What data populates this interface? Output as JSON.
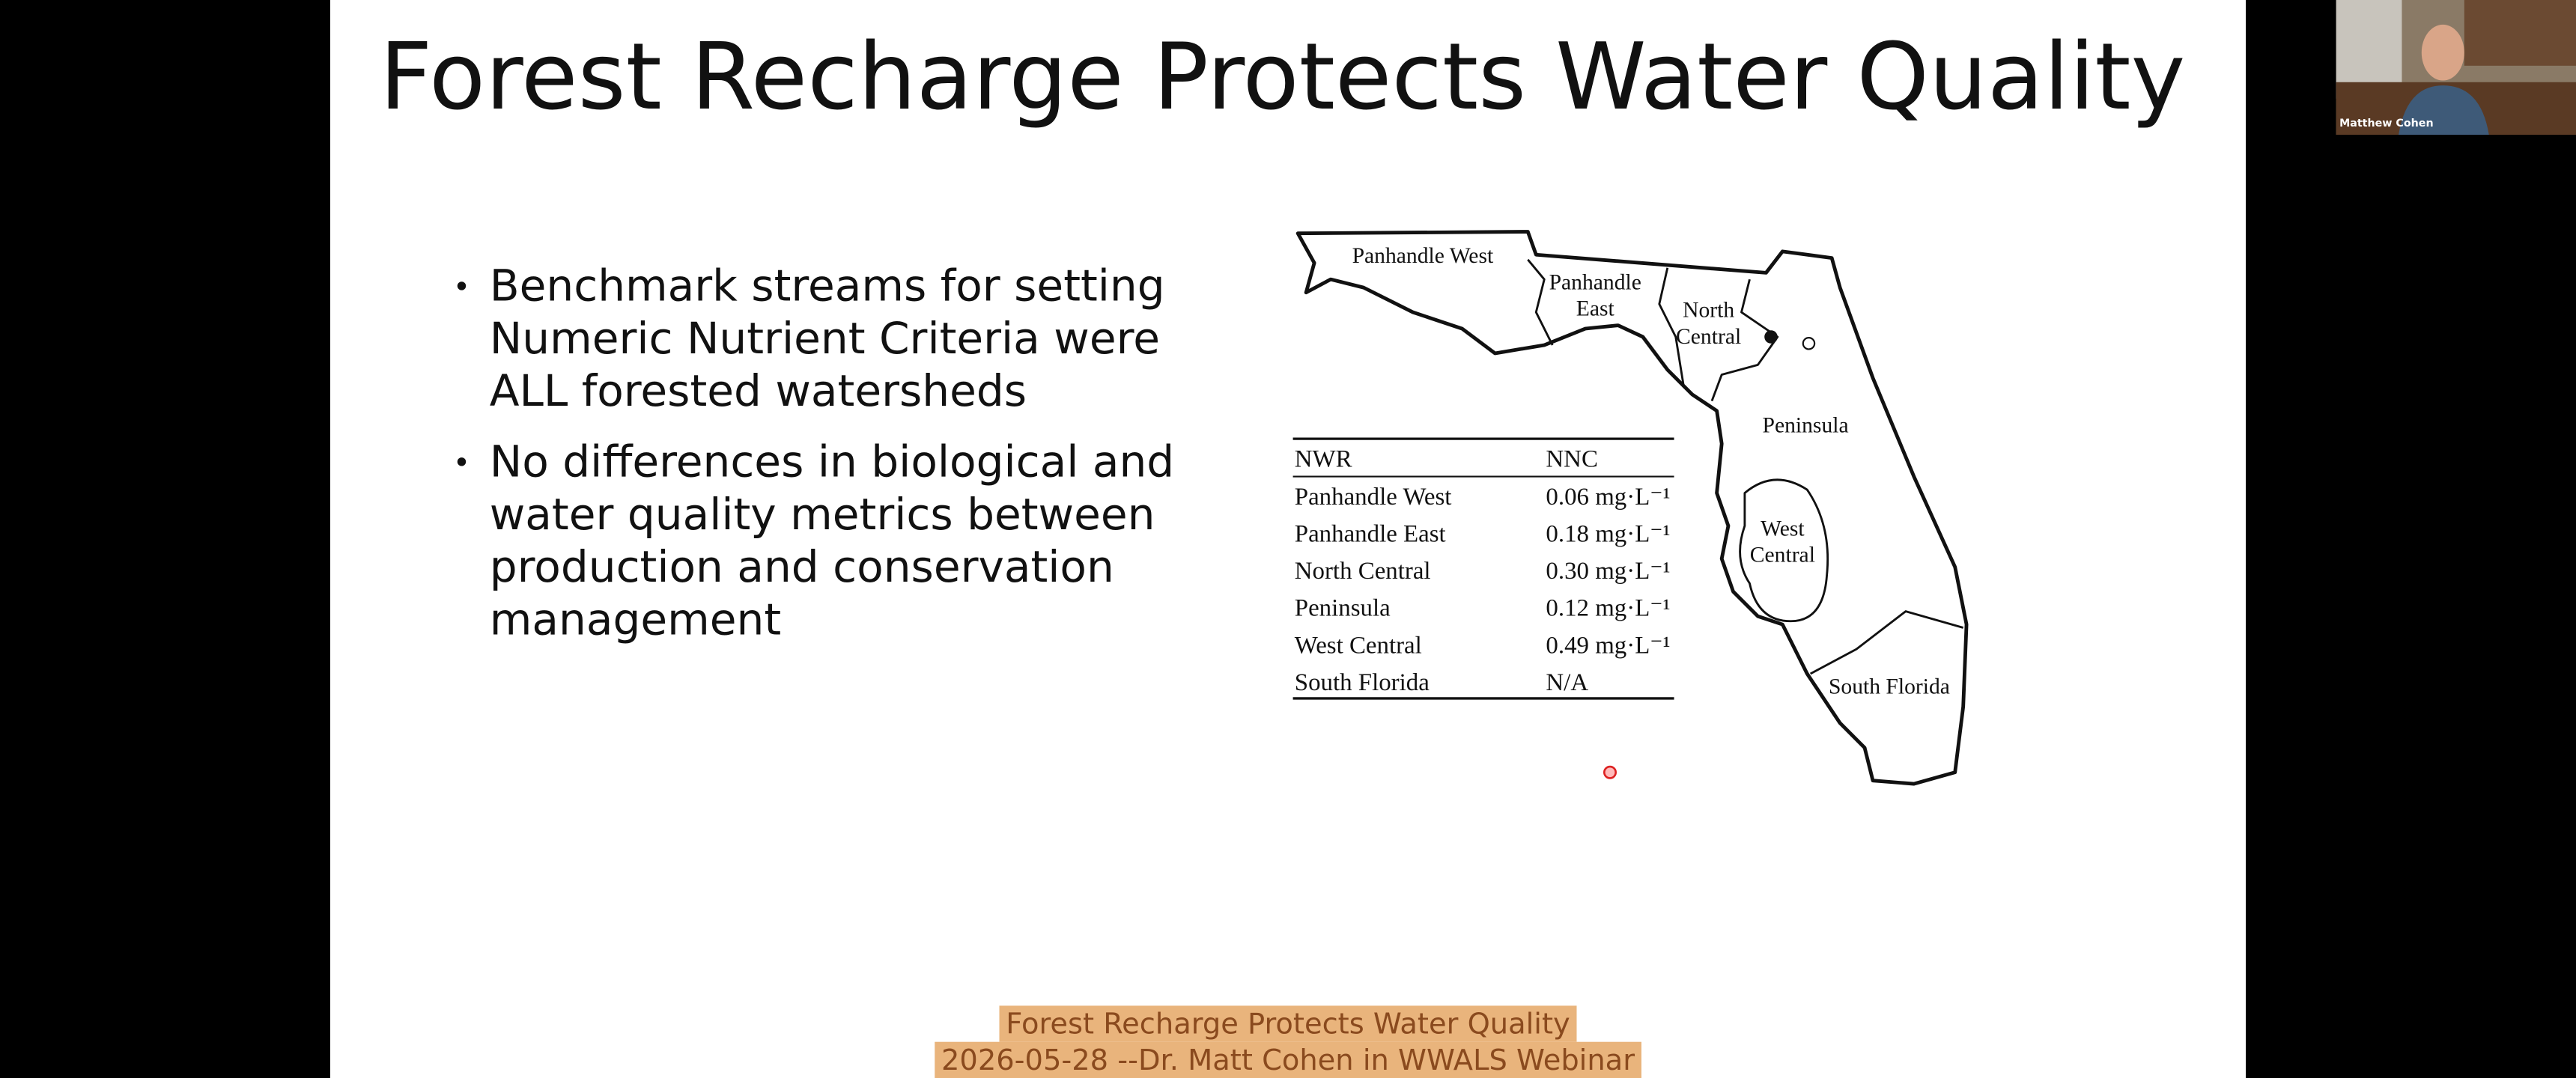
{
  "slide": {
    "title": "Forest Recharge Protects Water Quality",
    "bullets": [
      [
        "Benchmark streams for setting",
        "Numeric Nutrient Criteria were",
        "ALL forested watersheds"
      ],
      [
        "No differences in biological and",
        "water quality metrics between",
        "production and conservation",
        "management"
      ]
    ]
  },
  "map": {
    "regions": [
      [
        "Panhandle West"
      ],
      [
        "Panhandle",
        "East"
      ],
      [
        "North",
        "Central"
      ],
      [
        "Peninsula"
      ],
      [
        "West",
        "Central"
      ],
      [
        "South Florida"
      ]
    ]
  },
  "table": {
    "header": [
      "NWR",
      "NNC"
    ],
    "rows": [
      [
        "Panhandle West",
        "0.06 mg·L⁻¹"
      ],
      [
        "Panhandle East",
        "0.18 mg·L⁻¹"
      ],
      [
        "North Central",
        "0.30 mg·L⁻¹"
      ],
      [
        "Peninsula",
        "0.12 mg·L⁻¹"
      ],
      [
        "West Central",
        "0.49 mg·L⁻¹"
      ],
      [
        "South Florida",
        "N/A"
      ]
    ]
  },
  "video": {
    "name": "Matthew Cohen"
  },
  "caption": {
    "lines": [
      "Forest Recharge Protects Water Quality",
      "2026-05-28 --Dr. Matt Cohen in WWALS Webinar"
    ]
  }
}
